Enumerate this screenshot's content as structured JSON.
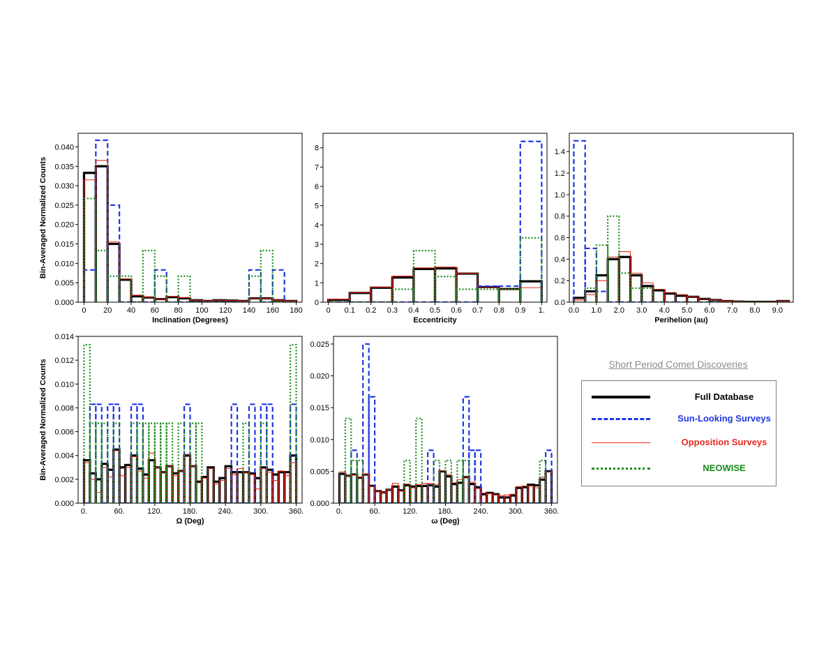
{
  "colors": {
    "full": "#000000",
    "sun": "#1f35e6",
    "opp": "#e62a1f",
    "neo": "#1a8c1a"
  },
  "legend": {
    "title": "Short Period Comet Discoveries",
    "items": [
      {
        "key": "full",
        "label": "Full Database",
        "style": "solid-thick"
      },
      {
        "key": "sun",
        "label": "Sun-Looking Surveys",
        "style": "dashed"
      },
      {
        "key": "opp",
        "label": "Opposition Surveys",
        "style": "solid-thin"
      },
      {
        "key": "neo",
        "label": "NEOWISE",
        "style": "dotted"
      }
    ]
  },
  "chart_data": [
    {
      "type": "bar",
      "histtype": "step",
      "xlabel": "Inclination (Degrees)",
      "ylabel": "Bin-Averaged Normalized Counts",
      "xlim": [
        -5,
        185
      ],
      "ylim": [
        0,
        0.0435
      ],
      "xticks": [
        0,
        20,
        40,
        60,
        80,
        100,
        120,
        140,
        160,
        180
      ],
      "xticklabels": [
        "0",
        "20",
        "40",
        "60",
        "80",
        "100",
        "120",
        "140",
        "160",
        "180"
      ],
      "yticks": [
        0,
        0.005,
        0.01,
        0.015,
        0.02,
        0.025,
        0.03,
        0.035,
        0.04
      ],
      "yticklabels": [
        "0.000",
        "0.005",
        "0.010",
        "0.015",
        "0.020",
        "0.025",
        "0.030",
        "0.035",
        "0.040"
      ],
      "bin_edges": [
        0,
        10,
        20,
        30,
        40,
        50,
        60,
        70,
        80,
        90,
        100,
        110,
        120,
        130,
        140,
        150,
        160,
        170,
        180
      ],
      "series": [
        {
          "key": "full",
          "values": [
            0.0333,
            0.035,
            0.015,
            0.0058,
            0.0015,
            0.0012,
            0.0008,
            0.0013,
            0.001,
            0.0005,
            0.0003,
            0.0005,
            0.0004,
            0.0003,
            0.001,
            0.001,
            0.0005,
            0.0003
          ]
        },
        {
          "key": "sun",
          "values": [
            0.0083,
            0.0417,
            0.025,
            0,
            0,
            0,
            0.0083,
            0,
            0,
            0,
            0,
            0,
            0,
            0,
            0.0083,
            0,
            0.0083,
            0
          ]
        },
        {
          "key": "opp",
          "values": [
            0.0315,
            0.0365,
            0.0155,
            0.006,
            0.0018,
            0.0013,
            0.0008,
            0.0015,
            0.0012,
            0.0005,
            0.0003,
            0.0005,
            0.0004,
            0.0003,
            0.001,
            0.001,
            0.0005,
            0.0003
          ]
        },
        {
          "key": "neo",
          "values": [
            0.0267,
            0.0133,
            0.0067,
            0.0067,
            0,
            0.0133,
            0.0067,
            0,
            0.0067,
            0,
            0,
            0,
            0,
            0,
            0.0067,
            0.0133,
            0,
            0
          ]
        }
      ]
    },
    {
      "type": "bar",
      "histtype": "step",
      "xlabel": "Eccentricity",
      "ylabel": "",
      "xlim": [
        -0.025,
        1.025
      ],
      "ylim": [
        0,
        8.75
      ],
      "xticks": [
        0,
        0.1,
        0.2,
        0.3,
        0.4,
        0.5,
        0.6,
        0.7,
        0.8,
        0.9,
        1.0
      ],
      "xticklabels": [
        "0",
        "0.1",
        "0.2",
        "0.3",
        "0.4",
        "0.5",
        "0.6",
        "0.7",
        "0.8",
        "0.9",
        "1."
      ],
      "yticks": [
        0,
        1,
        2,
        3,
        4,
        5,
        6,
        7,
        8
      ],
      "yticklabels": [
        "0",
        "1",
        "2",
        "3",
        "4",
        "5",
        "6",
        "7",
        "8"
      ],
      "bin_edges": [
        0,
        0.1,
        0.2,
        0.3,
        0.4,
        0.5,
        0.6,
        0.7,
        0.8,
        0.9,
        1.0
      ],
      "series": [
        {
          "key": "full",
          "values": [
            0.12,
            0.48,
            0.75,
            1.28,
            1.72,
            1.75,
            1.48,
            0.78,
            0.68,
            1.08
          ]
        },
        {
          "key": "sun",
          "values": [
            0,
            0,
            0,
            0,
            0,
            0,
            0,
            0.83,
            0.83,
            8.33
          ]
        },
        {
          "key": "opp",
          "values": [
            0.15,
            0.5,
            0.78,
            1.35,
            1.78,
            1.82,
            1.5,
            0.75,
            0.65,
            0.75
          ]
        },
        {
          "key": "neo",
          "values": [
            0,
            0,
            0,
            0.67,
            2.67,
            1.33,
            0.67,
            0.67,
            0.67,
            3.33
          ]
        }
      ]
    },
    {
      "type": "bar",
      "histtype": "step",
      "xlabel": "Perihelion (au)",
      "ylabel": "",
      "xlim": [
        -0.2,
        9.7
      ],
      "ylim": [
        0,
        1.57
      ],
      "xticks": [
        0,
        1,
        2,
        3,
        4,
        5,
        6,
        7,
        8,
        9
      ],
      "xticklabels": [
        "0.0",
        "1.0",
        "2.0",
        "3.0",
        "4.0",
        "5.0",
        "6.0",
        "7.0",
        "8.0",
        "9.0"
      ],
      "yticks": [
        0,
        0.2,
        0.4,
        0.6,
        0.8,
        1.0,
        1.2,
        1.4
      ],
      "yticklabels": [
        "0.0",
        "0.2",
        "0.4",
        "0.6",
        "0.8",
        "1.0",
        "1.2",
        "1.4"
      ],
      "bin_edges": [
        0,
        0.5,
        1.0,
        1.5,
        2.0,
        2.5,
        3.0,
        3.5,
        4.0,
        4.5,
        5.0,
        5.5,
        6.0,
        6.5,
        7.0,
        7.5,
        8.0,
        8.5,
        9.0,
        9.5
      ],
      "series": [
        {
          "key": "full",
          "values": [
            0.04,
            0.1,
            0.25,
            0.4,
            0.42,
            0.25,
            0.15,
            0.11,
            0.08,
            0.06,
            0.05,
            0.03,
            0.02,
            0.01,
            0.005,
            0.003,
            0.003,
            0.003,
            0.01
          ]
        },
        {
          "key": "sun",
          "values": [
            1.5,
            0.5,
            0.1,
            0,
            0,
            0,
            0,
            0,
            0,
            0,
            0,
            0,
            0,
            0,
            0,
            0,
            0,
            0,
            0
          ]
        },
        {
          "key": "opp",
          "values": [
            0.02,
            0.07,
            0.2,
            0.42,
            0.47,
            0.27,
            0.18,
            0.12,
            0.09,
            0.07,
            0.05,
            0.03,
            0.02,
            0.01,
            0.005,
            0.003,
            0.003,
            0.003,
            0.01
          ]
        },
        {
          "key": "neo",
          "values": [
            0.0,
            0.13,
            0.53,
            0.8,
            0.27,
            0.13,
            0.13,
            0,
            0,
            0,
            0,
            0,
            0,
            0,
            0,
            0,
            0,
            0,
            0
          ]
        }
      ]
    },
    {
      "type": "bar",
      "histtype": "step",
      "xlabel": "Ω (Deg)",
      "ylabel": "Bin-Averaged Normalized Counts",
      "xlim": [
        -10,
        370
      ],
      "ylim": [
        0,
        0.014
      ],
      "xticks": [
        0,
        60,
        120,
        180,
        240,
        300,
        360
      ],
      "xticklabels": [
        "0.",
        "60.",
        "120.",
        "180.",
        "240.",
        "300.",
        "360."
      ],
      "yticks": [
        0,
        0.002,
        0.004,
        0.006,
        0.008,
        0.01,
        0.012,
        0.014
      ],
      "yticklabels": [
        "0.000",
        "0.002",
        "0.004",
        "0.006",
        "0.008",
        "0.010",
        "0.012",
        "0.014"
      ],
      "bin_start": 0,
      "bin_width": 10,
      "series": [
        {
          "key": "full",
          "values": [
            0.0036,
            0.0025,
            0.002,
            0.0033,
            0.0028,
            0.0045,
            0.003,
            0.0032,
            0.004,
            0.0029,
            0.0024,
            0.0036,
            0.003,
            0.0026,
            0.0031,
            0.0025,
            0.0027,
            0.004,
            0.0031,
            0.0018,
            0.0022,
            0.003,
            0.0018,
            0.0021,
            0.0031,
            0.0026,
            0.0026,
            0.0026,
            0.0025,
            0.0021,
            0.003,
            0.0028,
            0.0024,
            0.0026,
            0.0026,
            0.004
          ]
        },
        {
          "key": "sun",
          "values": [
            0,
            0.0083,
            0.0083,
            0,
            0.0083,
            0.0083,
            0,
            0,
            0.0083,
            0.0083,
            0,
            0,
            0,
            0,
            0,
            0,
            0,
            0.0083,
            0,
            0,
            0,
            0,
            0,
            0,
            0,
            0.0083,
            0,
            0,
            0.0083,
            0,
            0.0083,
            0.0083,
            0,
            0,
            0,
            0.0083
          ]
        },
        {
          "key": "opp",
          "values": [
            0.0034,
            0.002,
            0.0009,
            0.003,
            0.0022,
            0.0044,
            0.0023,
            0.003,
            0.0039,
            0.0027,
            0.0021,
            0.0042,
            0.003,
            0.0026,
            0.0031,
            0.0023,
            0.0027,
            0.0041,
            0.0031,
            0.0017,
            0.0021,
            0.0029,
            0.0016,
            0.0019,
            0.0029,
            0.0024,
            0.0029,
            0.0026,
            0.0024,
            0.0012,
            0.0029,
            0.0026,
            0.0019,
            0.0027,
            0.0023,
            0.0034
          ]
        },
        {
          "key": "neo",
          "values": [
            0.0133,
            0.0067,
            0.0067,
            0.0067,
            0,
            0.0067,
            0,
            0,
            0.0067,
            0.0067,
            0.0067,
            0.0067,
            0.0067,
            0.0067,
            0.0067,
            0,
            0.0067,
            0,
            0.0067,
            0.0067,
            0,
            0,
            0,
            0,
            0,
            0,
            0,
            0.0067,
            0,
            0,
            0.0067,
            0,
            0,
            0,
            0,
            0.0133
          ]
        }
      ]
    },
    {
      "type": "bar",
      "histtype": "step",
      "xlabel": "ω (Deg)",
      "ylabel": "",
      "xlim": [
        -10,
        370
      ],
      "ylim": [
        0,
        0.0262
      ],
      "xticks": [
        0,
        60,
        120,
        180,
        240,
        300,
        360
      ],
      "xticklabels": [
        "0.",
        "60.",
        "120.",
        "180.",
        "240.",
        "300.",
        "360."
      ],
      "yticks": [
        0,
        0.005,
        0.01,
        0.015,
        0.02,
        0.025
      ],
      "yticklabels": [
        "0.000",
        "0.005",
        "0.010",
        "0.015",
        "0.020",
        "0.025"
      ],
      "bin_start": 0,
      "bin_width": 10,
      "series": [
        {
          "key": "full",
          "values": [
            0.0046,
            0.0043,
            0.0045,
            0.004,
            0.0045,
            0.0027,
            0.0019,
            0.0017,
            0.0021,
            0.0026,
            0.002,
            0.0028,
            0.0026,
            0.0027,
            0.0027,
            0.0028,
            0.0026,
            0.005,
            0.0042,
            0.003,
            0.0032,
            0.0041,
            0.003,
            0.0025,
            0.0014,
            0.0016,
            0.0014,
            0.0009,
            0.0009,
            0.0012,
            0.0024,
            0.0025,
            0.0029,
            0.0028,
            0.0037,
            0.005
          ]
        },
        {
          "key": "sun",
          "values": [
            0,
            0,
            0.0083,
            0,
            0.025,
            0.0167,
            0,
            0,
            0,
            0,
            0,
            0,
            0,
            0,
            0,
            0.0083,
            0,
            0,
            0,
            0,
            0,
            0.0167,
            0.0083,
            0.0083,
            0,
            0,
            0,
            0,
            0,
            0,
            0,
            0,
            0,
            0,
            0,
            0.0083
          ]
        },
        {
          "key": "opp",
          "values": [
            0.0049,
            0.0043,
            0.0044,
            0.0041,
            0.0046,
            0.0026,
            0.0019,
            0.0017,
            0.0021,
            0.0031,
            0.0019,
            0.003,
            0.0024,
            0.0029,
            0.0031,
            0.0031,
            0.0029,
            0.0051,
            0.0045,
            0.0032,
            0.0037,
            0.0041,
            0.0033,
            0.0023,
            0.0016,
            0.0015,
            0.0013,
            0.0012,
            0.0013,
            0.0014,
            0.0026,
            0.0027,
            0.0027,
            0.0024,
            0.0041,
            0.0049
          ]
        },
        {
          "key": "neo",
          "values": [
            0,
            0.0133,
            0.0067,
            0.0067,
            0,
            0,
            0,
            0,
            0,
            0,
            0,
            0.0067,
            0,
            0.0133,
            0,
            0,
            0.0067,
            0,
            0.0067,
            0,
            0.0067,
            0.0067,
            0,
            0,
            0,
            0,
            0,
            0,
            0,
            0,
            0,
            0,
            0,
            0,
            0.0067,
            0
          ]
        }
      ]
    }
  ]
}
